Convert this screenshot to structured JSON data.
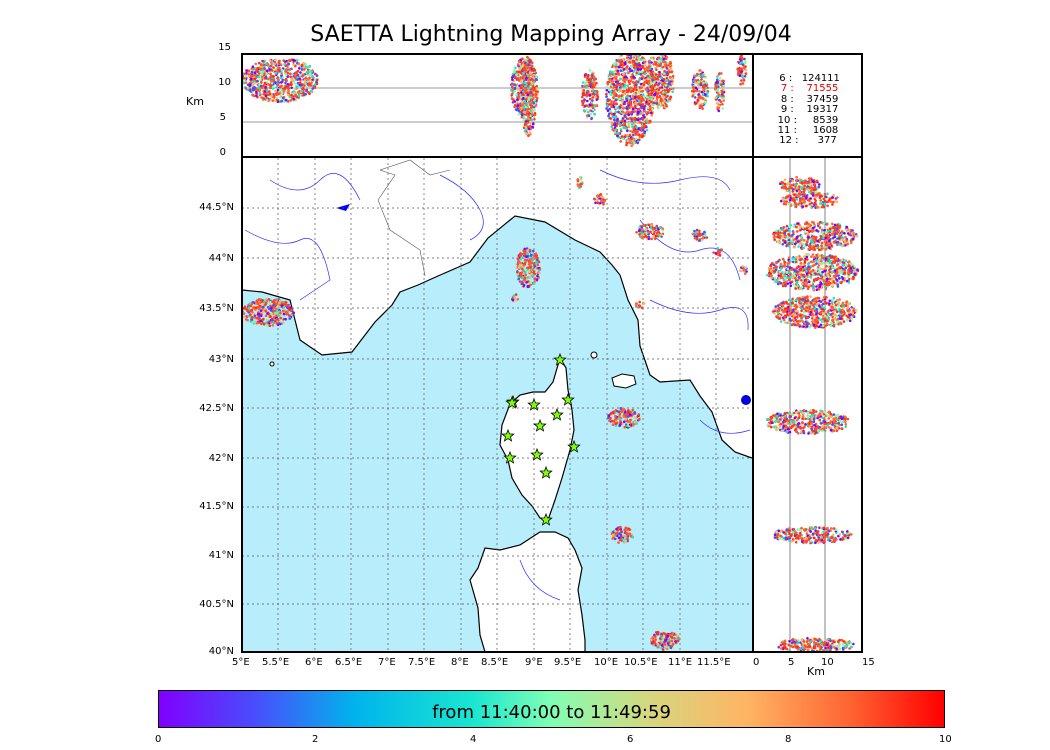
{
  "title": "SAETTA Lightning Mapping Array - 24/09/04",
  "alt_axis": {
    "unit": "Km",
    "ticks": [
      "15",
      "10",
      "5",
      "0"
    ]
  },
  "map": {
    "lat_ticks": [
      "44.5°N",
      "44°N",
      "43.5°N",
      "43°N",
      "42.5°N",
      "42°N",
      "41.5°N",
      "41°N",
      "40.5°N",
      "40°N"
    ],
    "lon_ticks": [
      "5°E",
      "5.5°E",
      "6°E",
      "6.5°E",
      "7°E",
      "7.5°E",
      "8°E",
      "8.5°E",
      "9°E",
      "9.5°E",
      "10°E",
      "10.5°E",
      "11°E",
      "11.5°E"
    ],
    "sea_color": "#b8eefc",
    "station_icon": "star-icon",
    "stations": 13
  },
  "side_axis": {
    "unit": "Km",
    "ticks": [
      "0",
      "5",
      "10",
      "15"
    ]
  },
  "stats": [
    {
      "n": "6",
      "count": "124111"
    },
    {
      "n": "7",
      "count": "71555",
      "highlight": true
    },
    {
      "n": "8",
      "count": "37459"
    },
    {
      "n": "9",
      "count": "19317"
    },
    {
      "n": "10",
      "count": "8539"
    },
    {
      "n": "11",
      "count": "1608"
    },
    {
      "n": "12",
      "count": "377"
    }
  ],
  "colorbar": {
    "label": "from 11:40:00 to 11:49:59",
    "ticks": [
      "0",
      "2",
      "4",
      "6",
      "8",
      "10"
    ],
    "colormap": [
      "#8000ff",
      "#00b4ec",
      "#80ffb4",
      "#ffb464",
      "#ff0000"
    ]
  }
}
